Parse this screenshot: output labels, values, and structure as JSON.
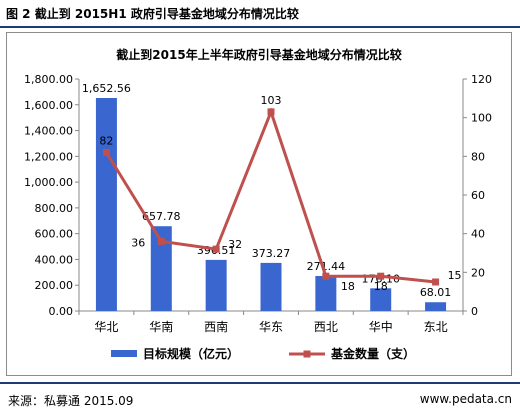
{
  "figure_title": "图 2  截止到 2015H1 政府引导基金地域分布情况比较",
  "footer": {
    "source": "来源：私募通 2015.09",
    "website": "www.pedata.cn"
  },
  "colors": {
    "bar": "#3a66d0",
    "line": "#c0504d",
    "rule": "#1f3b73"
  },
  "chart_data": {
    "type": "bar",
    "title": "截止到2015年上半年政府引导基金地域分布情况比较",
    "categories": [
      "华北",
      "华南",
      "西南",
      "华东",
      "西北",
      "华中",
      "东北"
    ],
    "series": [
      {
        "name": "目标规模（亿元）",
        "type": "bar",
        "axis": "left",
        "values": [
          1652.56,
          657.78,
          396.51,
          373.27,
          271.44,
          176.1,
          68.01
        ],
        "labels": [
          "1,652.56",
          "657.78",
          "396.51",
          "373.27",
          "271.44",
          "176.10",
          "68.01"
        ]
      },
      {
        "name": "基金数量（支）",
        "type": "line",
        "axis": "right",
        "values": [
          82,
          36,
          32,
          103,
          18,
          18,
          15
        ],
        "labels": [
          "82",
          "36",
          "32",
          "103",
          "18",
          "18",
          "15"
        ]
      }
    ],
    "y_left": {
      "lim": [
        0,
        1800
      ],
      "ticks": [
        0,
        200,
        400,
        600,
        800,
        1000,
        1200,
        1400,
        1600,
        1800
      ],
      "tick_labels": [
        "0.00",
        "200.00",
        "400.00",
        "600.00",
        "800.00",
        "1,000.00",
        "1,200.00",
        "1,400.00",
        "1,600.00",
        "1,800.00"
      ]
    },
    "y_right": {
      "lim": [
        0,
        120
      ],
      "ticks": [
        0,
        20,
        40,
        60,
        80,
        100,
        120
      ],
      "tick_labels": [
        "0",
        "20",
        "40",
        "60",
        "80",
        "100",
        "120"
      ]
    },
    "grid": false,
    "legend": "bottom"
  }
}
